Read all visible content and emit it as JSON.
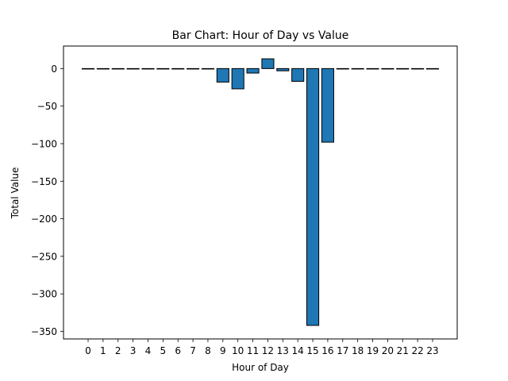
{
  "chart_data": {
    "type": "bar",
    "title": "Bar Chart: Hour of Day vs Value",
    "xlabel": "Hour of Day",
    "ylabel": "Total Value",
    "categories": [
      "0",
      "1",
      "2",
      "3",
      "4",
      "5",
      "6",
      "7",
      "8",
      "9",
      "10",
      "11",
      "12",
      "13",
      "14",
      "15",
      "16",
      "17",
      "18",
      "19",
      "20",
      "21",
      "22",
      "23"
    ],
    "values": [
      0,
      0,
      0,
      0,
      0,
      0,
      0,
      0,
      0,
      -18,
      -27,
      -6,
      13,
      -3,
      -17,
      -342,
      -98,
      0,
      0,
      0,
      0,
      0,
      0,
      0
    ],
    "ylim": [
      -360,
      30
    ],
    "yticks": [
      0,
      -50,
      -100,
      -150,
      -200,
      -250,
      -300,
      -350
    ],
    "ytick_labels": [
      "0",
      "−50",
      "−100",
      "−150",
      "−200",
      "−250",
      "−300",
      "−350"
    ],
    "bar_color": "#1f77b4",
    "edge_color": "#000000",
    "grid": false,
    "legend": "none"
  }
}
